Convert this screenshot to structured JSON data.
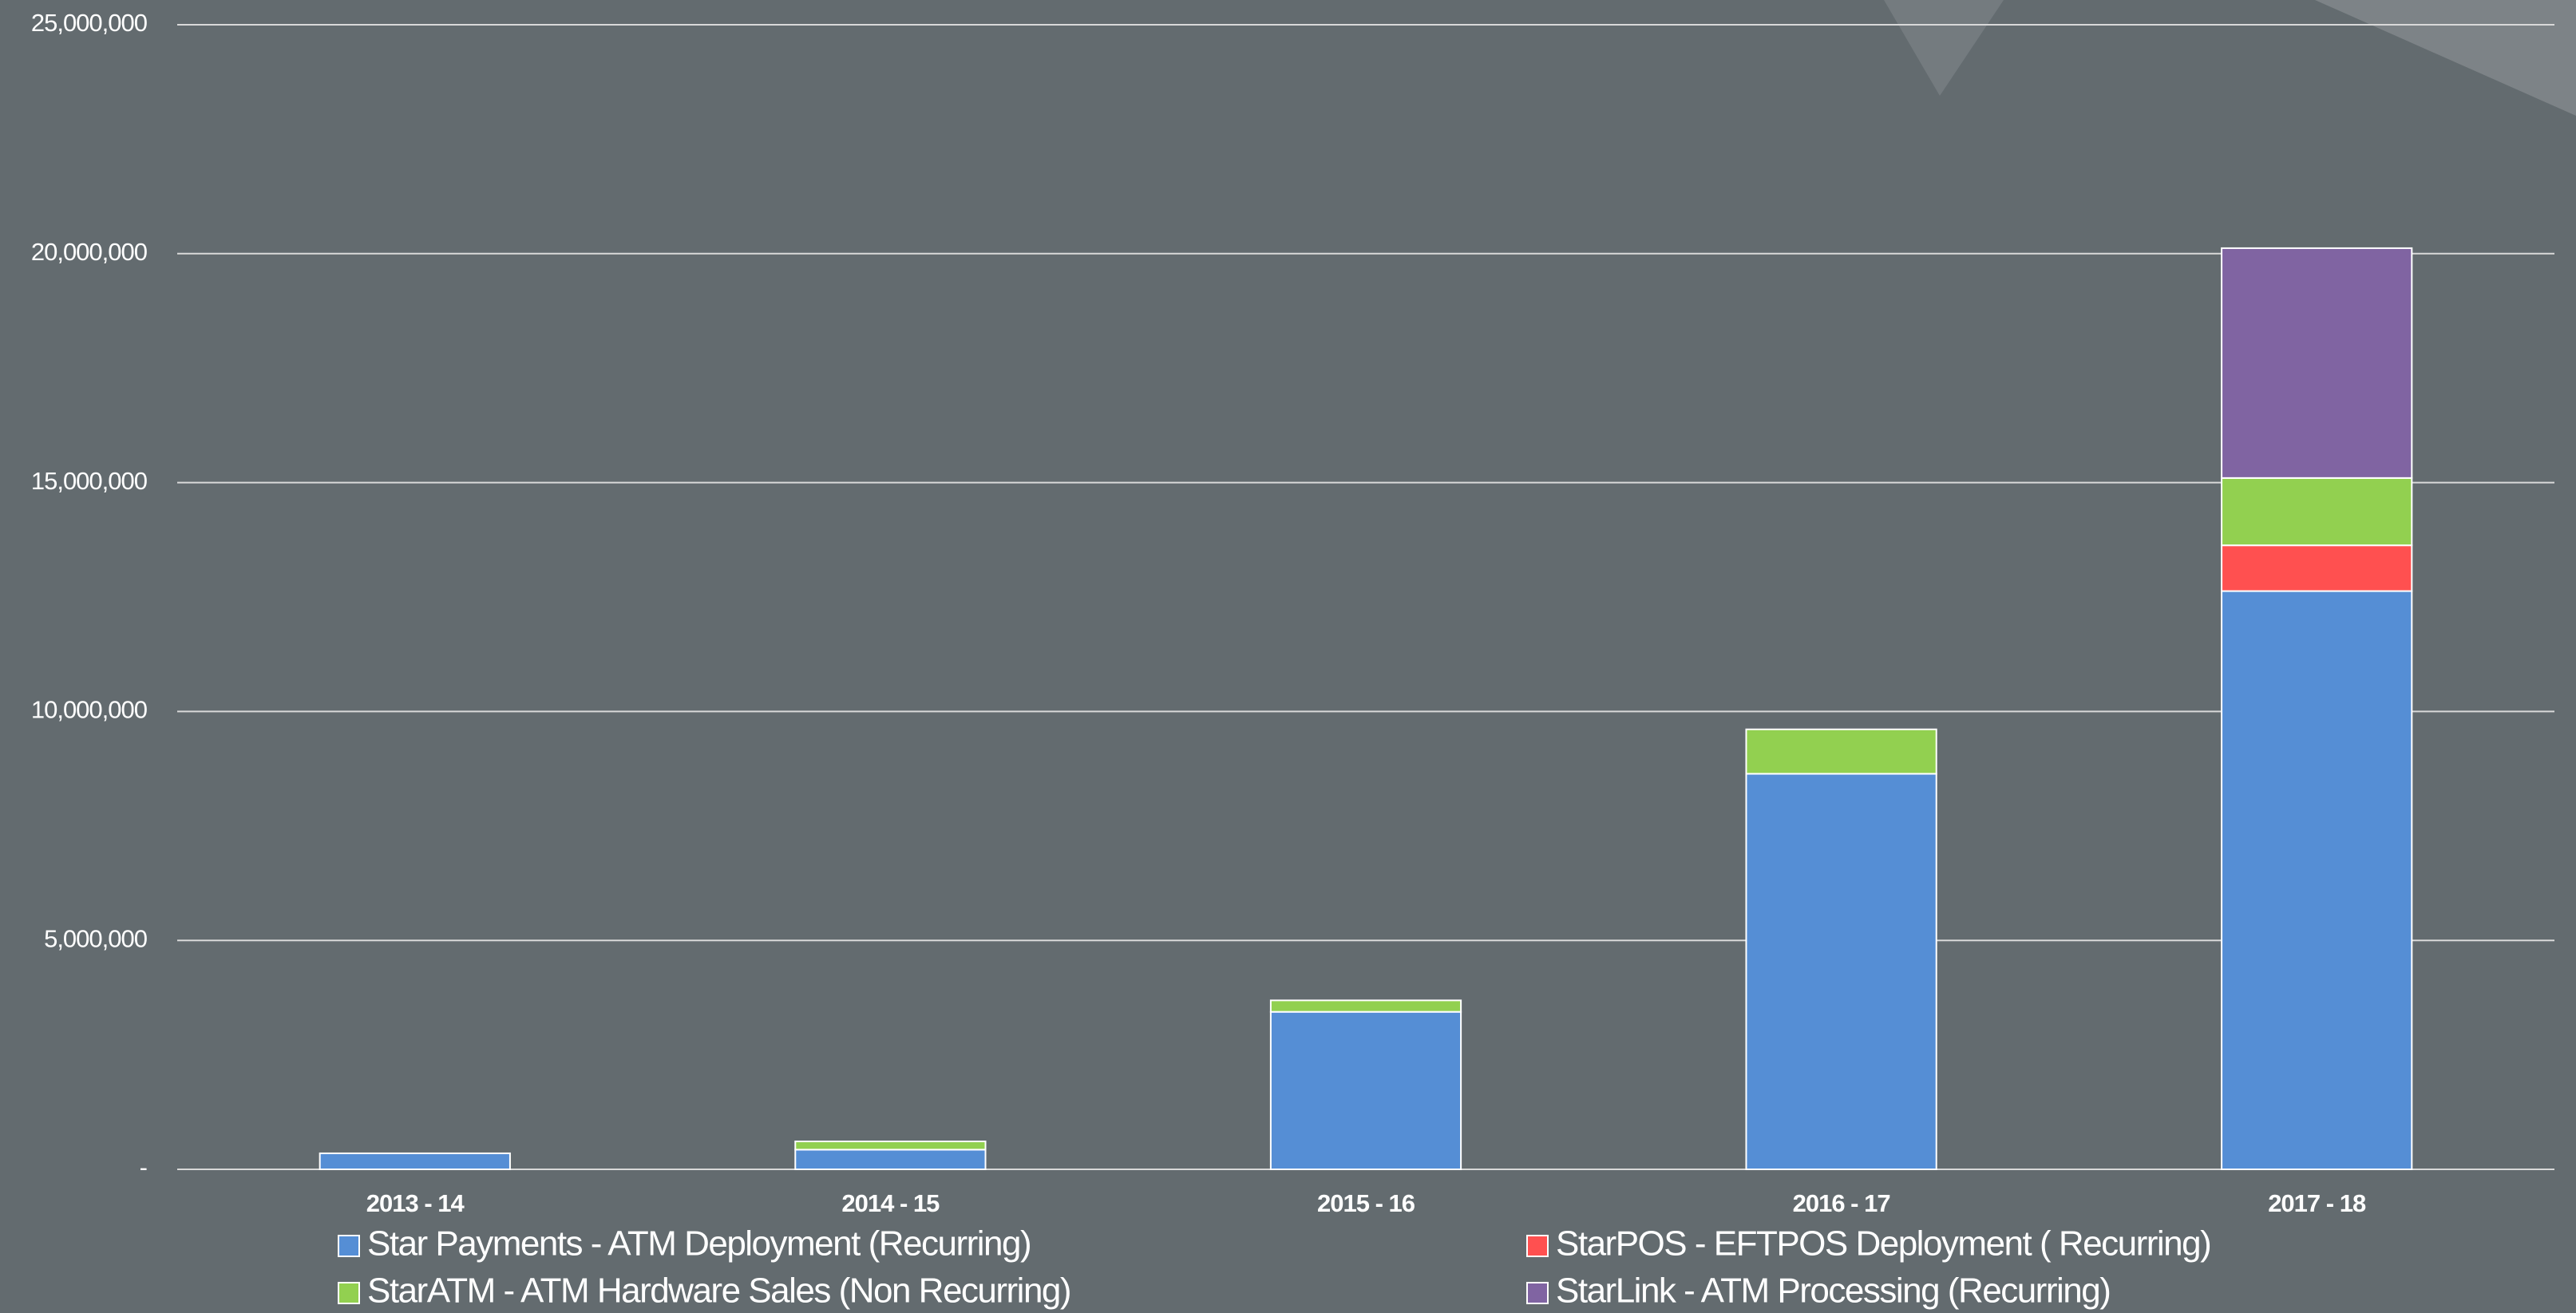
{
  "chart_data": {
    "type": "stacked_bar",
    "categories": [
      "2013 - 14",
      "2014 - 15",
      "2015 - 16",
      "2016 - 17",
      "2017 - 18"
    ],
    "series": [
      {
        "name": "Star Payments - ATM Deployment (Recurring)",
        "color": "#558ed5",
        "values": [
          350000,
          430000,
          3440000,
          8640000,
          12630000
        ]
      },
      {
        "name": "StarPOS - EFTPOS Deployment ( Recurring)",
        "color": "#ff5050",
        "values": [
          null,
          null,
          null,
          null,
          1000000
        ]
      },
      {
        "name": "StarATM - ATM Hardware Sales (Non Recurring)",
        "color": "#92d050",
        "values": [
          null,
          180000,
          250000,
          970000,
          1470000
        ]
      },
      {
        "name": "StarLink - ATM Processing (Recurring)",
        "color": "#8064a2",
        "values": [
          null,
          null,
          null,
          null,
          5020000
        ]
      }
    ],
    "ylim": [
      0,
      25000000
    ],
    "yticks": [
      {
        "value": 0,
        "label": "-"
      },
      {
        "value": 5000000,
        "label": "5,000,000"
      },
      {
        "value": 10000000,
        "label": "10,000,000"
      },
      {
        "value": 15000000,
        "label": "15,000,000"
      },
      {
        "value": 20000000,
        "label": "20,000,000"
      },
      {
        "value": 25000000,
        "label": "25,000,000"
      }
    ],
    "grid": true
  }
}
